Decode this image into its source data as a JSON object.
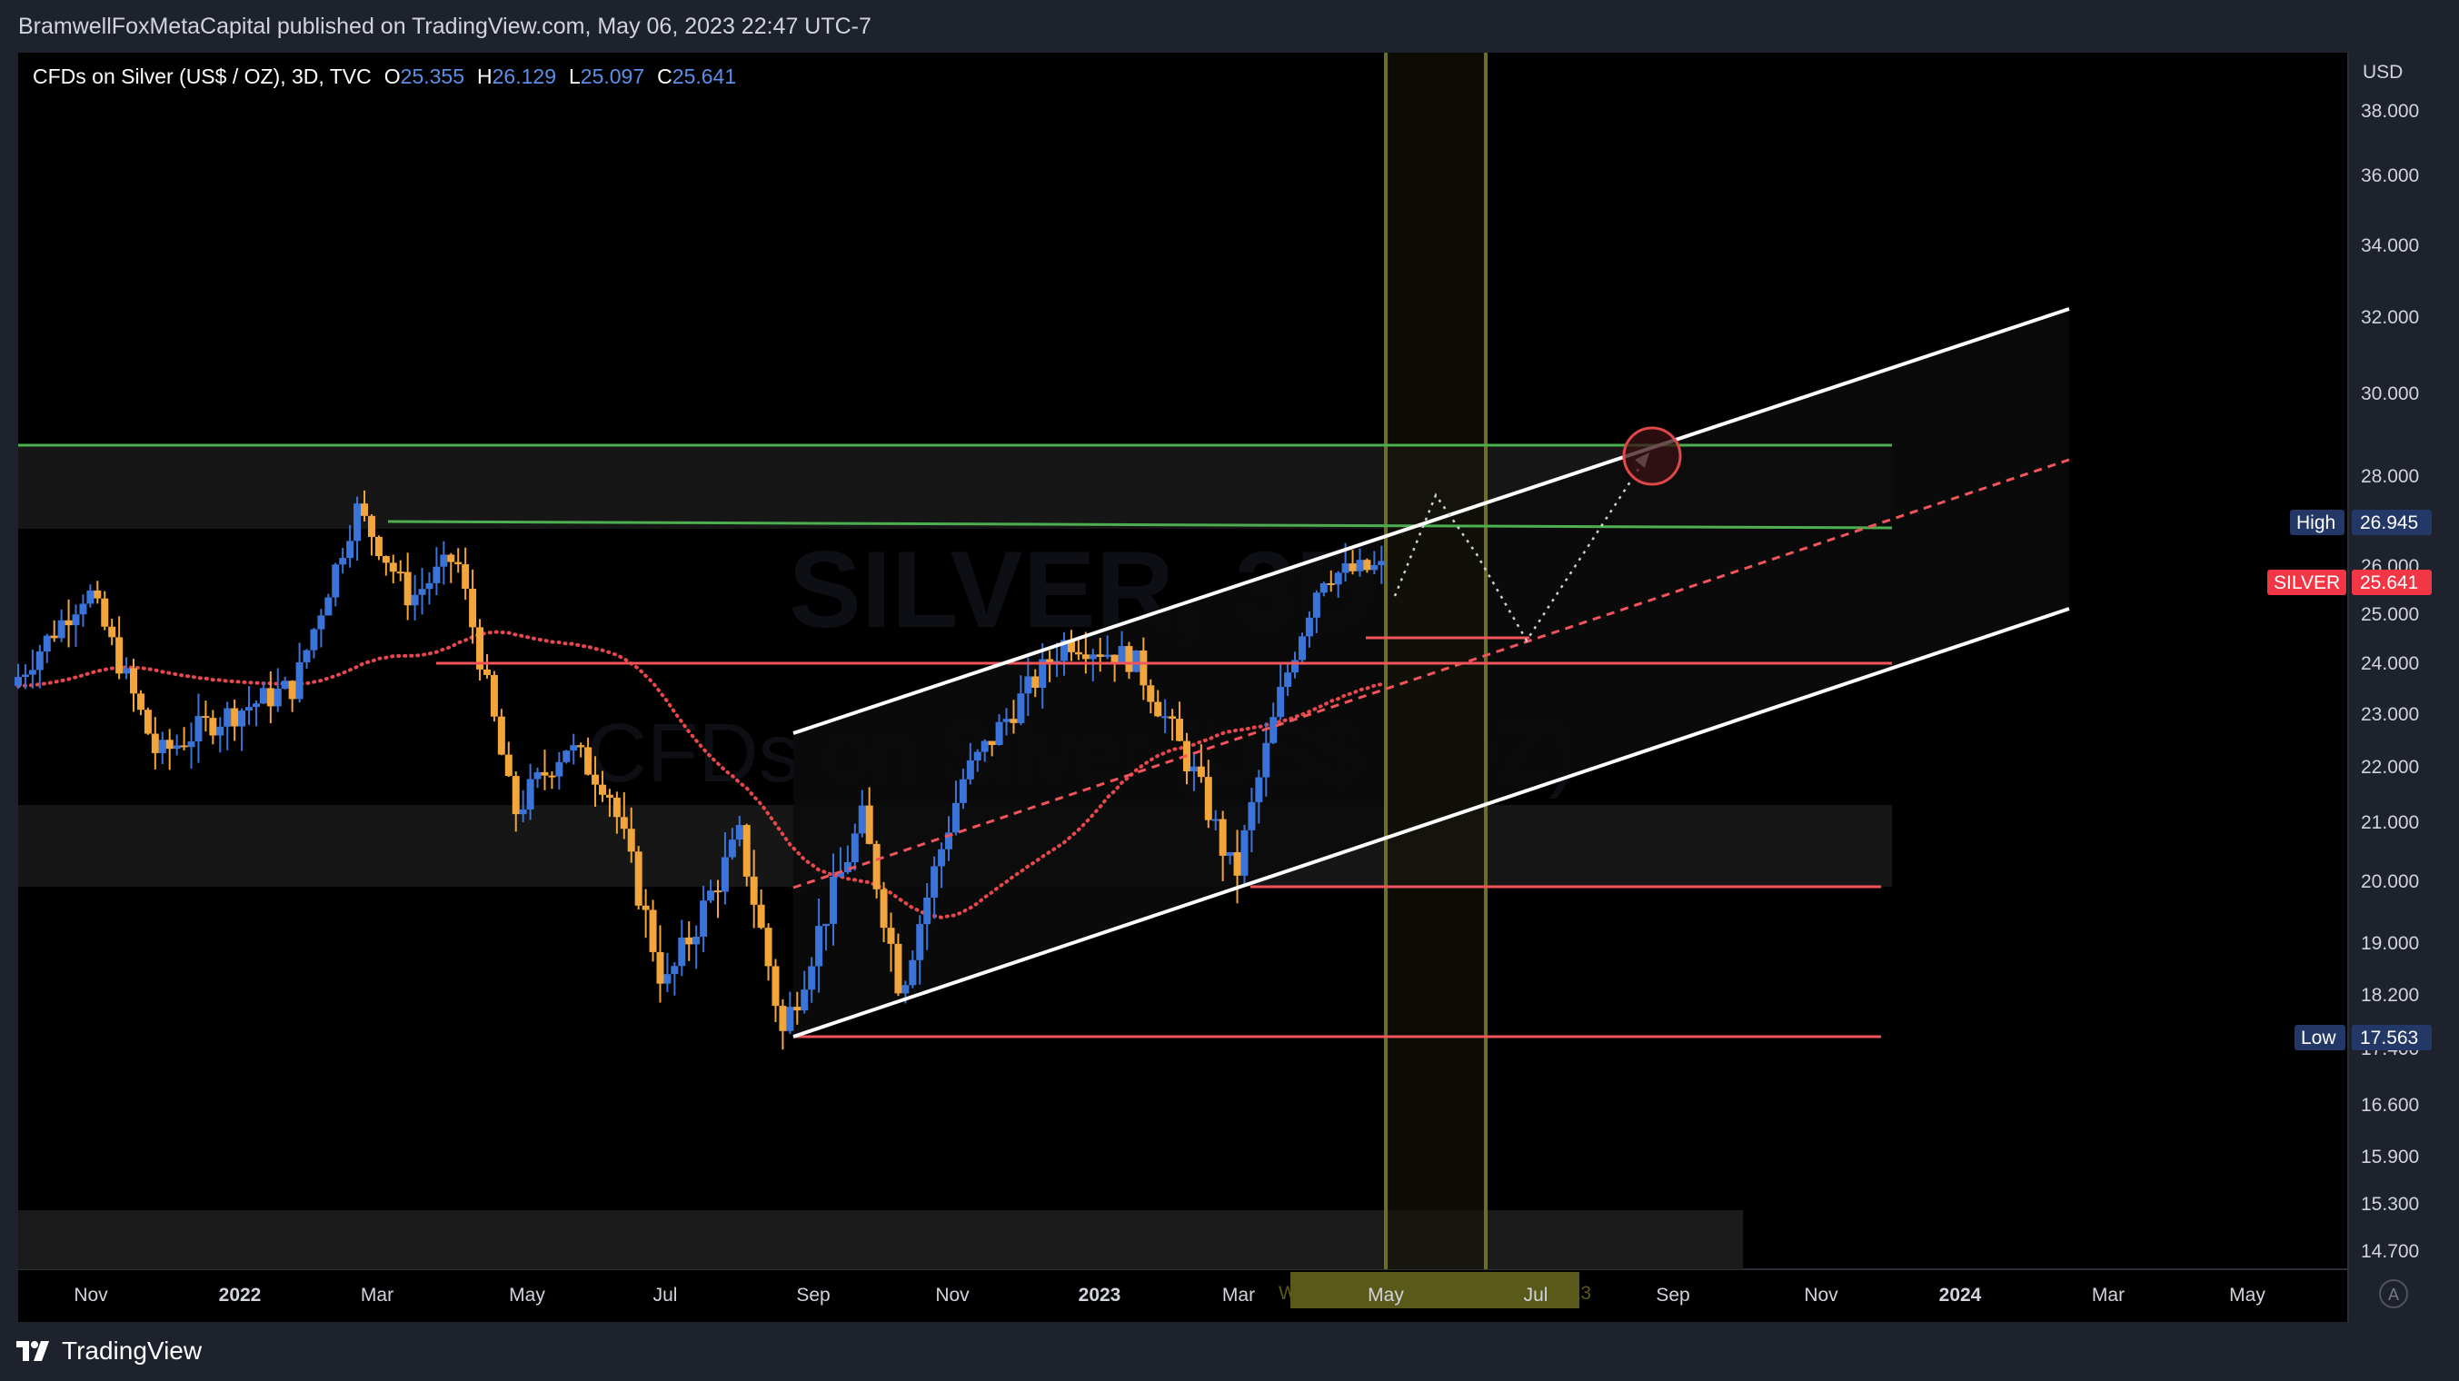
{
  "header": {
    "publish_line": "BramwellFoxMetaCapital published on TradingView.com, May 06, 2023 22:47 UTC-7"
  },
  "legend": {
    "symbol": "CFDs on Silver (US$ / OZ), 3D, TVC",
    "o_label": "O",
    "o_value": "25.355",
    "h_label": "H",
    "h_value": "26.129",
    "l_label": "L",
    "l_value": "25.097",
    "c_label": "C",
    "c_value": "25.641"
  },
  "watermark": {
    "line1": "SILVER, 3D",
    "line2": "CFDs on Silver (US$ / OZ)"
  },
  "price_axis": {
    "currency": "USD",
    "ticks": [
      "38.000",
      "36.000",
      "34.000",
      "32.000",
      "30.000",
      "28.000",
      "26.000",
      "25.000",
      "24.000",
      "23.000",
      "22.000",
      "21.000",
      "20.000",
      "19.000",
      "18.200",
      "17.400",
      "16.600",
      "15.900",
      "15.300",
      "14.700"
    ]
  },
  "badges": {
    "high_label": "High",
    "high_value": "26.945",
    "silver_label": "SILVER",
    "silver_value": "25.641",
    "low_label": "Low",
    "low_value": "17.563"
  },
  "time_axis": {
    "labels": [
      "Nov",
      "2022",
      "Mar",
      "May",
      "Jul",
      "Sep",
      "Nov",
      "2023",
      "Mar",
      "May",
      "Jul",
      "Sep",
      "Nov",
      "2024",
      "Mar",
      "May"
    ],
    "date_marker": "Wed May 17 '23 – Wed Jun 14, 2023",
    "auto_button": "A"
  },
  "footer": {
    "brand": "TradingView"
  },
  "colors": {
    "background": "#000000",
    "frame": "#1e222d",
    "up_candle": "#3b74d9",
    "down_candle": "#f2a53a",
    "support_line": "#f2545b",
    "resistance_line": "#4caf50",
    "channel": "#ffffff",
    "ma_dots": "#e8474b",
    "vertical_marker": "#8a8a2a",
    "high_badge": "#233866",
    "silver_badge": "#f23645"
  },
  "chart_data": {
    "type": "candlestick",
    "title": "CFDs on Silver (US$ / OZ)",
    "timeframe": "3D",
    "scale": "log",
    "ylim": [
      14.5,
      39.0
    ],
    "x_range": [
      "2021-10-15",
      "2024-06-10"
    ],
    "last_price": 25.641,
    "period_high": 26.945,
    "period_low": 17.563,
    "ohlc_path": [
      [
        "2021-10-15",
        23.3
      ],
      [
        "2021-11-16",
        25.2
      ],
      [
        "2021-12-15",
        22.0
      ],
      [
        "2022-01-05",
        22.6
      ],
      [
        "2022-02-10",
        23.3
      ],
      [
        "2022-03-08",
        26.9
      ],
      [
        "2022-03-30",
        25.0
      ],
      [
        "2022-04-18",
        25.9
      ],
      [
        "2022-05-12",
        21.0
      ],
      [
        "2022-06-03",
        22.2
      ],
      [
        "2022-06-20",
        21.5
      ],
      [
        "2022-07-14",
        18.2
      ],
      [
        "2022-08-14",
        20.6
      ],
      [
        "2022-09-01",
        17.56
      ],
      [
        "2022-10-04",
        20.9
      ],
      [
        "2022-10-20",
        18.2
      ],
      [
        "2022-11-15",
        21.6
      ],
      [
        "2022-12-28",
        24.2
      ],
      [
        "2023-01-25",
        23.8
      ],
      [
        "2023-02-20",
        21.6
      ],
      [
        "2023-03-08",
        19.9
      ],
      [
        "2023-03-28",
        23.3
      ],
      [
        "2023-04-13",
        25.5
      ],
      [
        "2023-05-06",
        25.64
      ]
    ],
    "horizontal_levels": [
      {
        "price": 28.7,
        "kind": "resistance",
        "color": "green"
      },
      {
        "price": 26.945,
        "kind": "resistance",
        "color": "green"
      },
      {
        "price": 24.0,
        "kind": "support",
        "color": "red"
      },
      {
        "price": 24.55,
        "kind": "support",
        "color": "red"
      },
      {
        "price": 20.0,
        "kind": "support",
        "color": "red"
      },
      {
        "price": 17.563,
        "kind": "support",
        "color": "red"
      }
    ],
    "zones": [
      {
        "from": 26.945,
        "to": 28.7
      },
      {
        "from": 20.0,
        "to": 21.3
      },
      {
        "from": 14.6,
        "to": 15.1
      }
    ],
    "channel": {
      "lower": [
        [
          "2022-09-01",
          17.56
        ],
        [
          "2023-11-28",
          25.0
        ]
      ],
      "upper": [
        [
          "2022-09-01",
          22.9
        ],
        [
          "2023-11-28",
          32.0
        ]
      ],
      "middle": [
        [
          "2022-09-01",
          19.95
        ],
        [
          "2023-11-28",
          28.4
        ]
      ]
    },
    "projection": [
      [
        "2023-05-06",
        25.5
      ],
      [
        "2023-05-24",
        27.4
      ],
      [
        "2023-06-25",
        24.5
      ],
      [
        "2023-08-20",
        28.6
      ]
    ],
    "target_circle": {
      "date": "2023-08-20",
      "price": 28.7
    },
    "vertical_markers": [
      "2023-05-17",
      "2023-06-14"
    ]
  }
}
